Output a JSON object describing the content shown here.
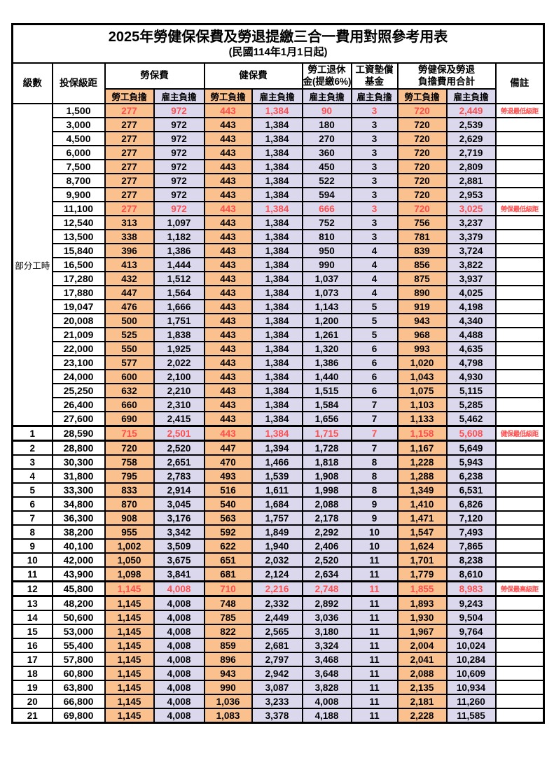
{
  "title": "2025年勞健保保費及勞退提繳三合一費用對照參考用表",
  "subtitle": "(民國114年1月1日起)",
  "columns": {
    "level": "級數",
    "bracket": "投保級距",
    "labor_fee": "勞保費",
    "health_fee": "健保費",
    "pension_line1": "勞工退休",
    "pension_line2": "金(提繳6%)",
    "wage_fund_line1": "工資墊償",
    "wage_fund_line2": "基金",
    "total_line1": "勞健保及勞退",
    "total_line2": "負擔費用合計",
    "remark": "備註",
    "employee_share": "勞工負擔",
    "employer_share": "雇主負擔"
  },
  "part_time_label": "部分工時",
  "part_time_rowspan": 23,
  "colors": {
    "employee_bg": "#FAC08E",
    "employer_bg": "#DBD8EE",
    "highlight_text": "#FF4D4D",
    "border": "#000000"
  },
  "rows": [
    {
      "level": "",
      "bracket": "1,500",
      "labor_emp": "277",
      "labor_er": "972",
      "health_emp": "443",
      "health_er": "1,384",
      "pension_er": "90",
      "fund_er": "3",
      "total_emp": "720",
      "total_er": "2,449",
      "remark": "勞退最低級距",
      "highlight": true,
      "emphasis": false
    },
    {
      "level": "",
      "bracket": "3,000",
      "labor_emp": "277",
      "labor_er": "972",
      "health_emp": "443",
      "health_er": "1,384",
      "pension_er": "180",
      "fund_er": "3",
      "total_emp": "720",
      "total_er": "2,539",
      "remark": "",
      "highlight": false,
      "emphasis": false
    },
    {
      "level": "",
      "bracket": "4,500",
      "labor_emp": "277",
      "labor_er": "972",
      "health_emp": "443",
      "health_er": "1,384",
      "pension_er": "270",
      "fund_er": "3",
      "total_emp": "720",
      "total_er": "2,629",
      "remark": "",
      "highlight": false,
      "emphasis": false
    },
    {
      "level": "",
      "bracket": "6,000",
      "labor_emp": "277",
      "labor_er": "972",
      "health_emp": "443",
      "health_er": "1,384",
      "pension_er": "360",
      "fund_er": "3",
      "total_emp": "720",
      "total_er": "2,719",
      "remark": "",
      "highlight": false,
      "emphasis": false
    },
    {
      "level": "",
      "bracket": "7,500",
      "labor_emp": "277",
      "labor_er": "972",
      "health_emp": "443",
      "health_er": "1,384",
      "pension_er": "450",
      "fund_er": "3",
      "total_emp": "720",
      "total_er": "2,809",
      "remark": "",
      "highlight": false,
      "emphasis": false
    },
    {
      "level": "",
      "bracket": "8,700",
      "labor_emp": "277",
      "labor_er": "972",
      "health_emp": "443",
      "health_er": "1,384",
      "pension_er": "522",
      "fund_er": "3",
      "total_emp": "720",
      "total_er": "2,881",
      "remark": "",
      "highlight": false,
      "emphasis": false
    },
    {
      "level": "",
      "bracket": "9,900",
      "labor_emp": "277",
      "labor_er": "972",
      "health_emp": "443",
      "health_er": "1,384",
      "pension_er": "594",
      "fund_er": "3",
      "total_emp": "720",
      "total_er": "2,953",
      "remark": "",
      "highlight": false,
      "emphasis": false
    },
    {
      "level": "",
      "bracket": "11,100",
      "labor_emp": "277",
      "labor_er": "972",
      "health_emp": "443",
      "health_er": "1,384",
      "pension_er": "666",
      "fund_er": "3",
      "total_emp": "720",
      "total_er": "3,025",
      "remark": "勞保最低級距",
      "highlight": true,
      "emphasis": false
    },
    {
      "level": "",
      "bracket": "12,540",
      "labor_emp": "313",
      "labor_er": "1,097",
      "health_emp": "443",
      "health_er": "1,384",
      "pension_er": "752",
      "fund_er": "3",
      "total_emp": "756",
      "total_er": "3,237",
      "remark": "",
      "highlight": false,
      "emphasis": false
    },
    {
      "level": "",
      "bracket": "13,500",
      "labor_emp": "338",
      "labor_er": "1,182",
      "health_emp": "443",
      "health_er": "1,384",
      "pension_er": "810",
      "fund_er": "3",
      "total_emp": "781",
      "total_er": "3,379",
      "remark": "",
      "highlight": false,
      "emphasis": false
    },
    {
      "level": "",
      "bracket": "15,840",
      "labor_emp": "396",
      "labor_er": "1,386",
      "health_emp": "443",
      "health_er": "1,384",
      "pension_er": "950",
      "fund_er": "4",
      "total_emp": "839",
      "total_er": "3,724",
      "remark": "",
      "highlight": false,
      "emphasis": false
    },
    {
      "level": "",
      "bracket": "16,500",
      "labor_emp": "413",
      "labor_er": "1,444",
      "health_emp": "443",
      "health_er": "1,384",
      "pension_er": "990",
      "fund_er": "4",
      "total_emp": "856",
      "total_er": "3,822",
      "remark": "",
      "highlight": false,
      "emphasis": false
    },
    {
      "level": "",
      "bracket": "17,280",
      "labor_emp": "432",
      "labor_er": "1,512",
      "health_emp": "443",
      "health_er": "1,384",
      "pension_er": "1,037",
      "fund_er": "4",
      "total_emp": "875",
      "total_er": "3,937",
      "remark": "",
      "highlight": false,
      "emphasis": false
    },
    {
      "level": "",
      "bracket": "17,880",
      "labor_emp": "447",
      "labor_er": "1,564",
      "health_emp": "443",
      "health_er": "1,384",
      "pension_er": "1,073",
      "fund_er": "4",
      "total_emp": "890",
      "total_er": "4,025",
      "remark": "",
      "highlight": false,
      "emphasis": false
    },
    {
      "level": "",
      "bracket": "19,047",
      "labor_emp": "476",
      "labor_er": "1,666",
      "health_emp": "443",
      "health_er": "1,384",
      "pension_er": "1,143",
      "fund_er": "5",
      "total_emp": "919",
      "total_er": "4,198",
      "remark": "",
      "highlight": false,
      "emphasis": false
    },
    {
      "level": "",
      "bracket": "20,008",
      "labor_emp": "500",
      "labor_er": "1,751",
      "health_emp": "443",
      "health_er": "1,384",
      "pension_er": "1,200",
      "fund_er": "5",
      "total_emp": "943",
      "total_er": "4,340",
      "remark": "",
      "highlight": false,
      "emphasis": false
    },
    {
      "level": "",
      "bracket": "21,009",
      "labor_emp": "525",
      "labor_er": "1,838",
      "health_emp": "443",
      "health_er": "1,384",
      "pension_er": "1,261",
      "fund_er": "5",
      "total_emp": "968",
      "total_er": "4,488",
      "remark": "",
      "highlight": false,
      "emphasis": false
    },
    {
      "level": "",
      "bracket": "22,000",
      "labor_emp": "550",
      "labor_er": "1,925",
      "health_emp": "443",
      "health_er": "1,384",
      "pension_er": "1,320",
      "fund_er": "6",
      "total_emp": "993",
      "total_er": "4,635",
      "remark": "",
      "highlight": false,
      "emphasis": false
    },
    {
      "level": "",
      "bracket": "23,100",
      "labor_emp": "577",
      "labor_er": "2,022",
      "health_emp": "443",
      "health_er": "1,384",
      "pension_er": "1,386",
      "fund_er": "6",
      "total_emp": "1,020",
      "total_er": "4,798",
      "remark": "",
      "highlight": false,
      "emphasis": false
    },
    {
      "level": "",
      "bracket": "24,000",
      "labor_emp": "600",
      "labor_er": "2,100",
      "health_emp": "443",
      "health_er": "1,384",
      "pension_er": "1,440",
      "fund_er": "6",
      "total_emp": "1,043",
      "total_er": "4,930",
      "remark": "",
      "highlight": false,
      "emphasis": false
    },
    {
      "level": "",
      "bracket": "25,250",
      "labor_emp": "632",
      "labor_er": "2,210",
      "health_emp": "443",
      "health_er": "1,384",
      "pension_er": "1,515",
      "fund_er": "6",
      "total_emp": "1,075",
      "total_er": "5,115",
      "remark": "",
      "highlight": false,
      "emphasis": false
    },
    {
      "level": "",
      "bracket": "26,400",
      "labor_emp": "660",
      "labor_er": "2,310",
      "health_emp": "443",
      "health_er": "1,384",
      "pension_er": "1,584",
      "fund_er": "7",
      "total_emp": "1,103",
      "total_er": "5,285",
      "remark": "",
      "highlight": false,
      "emphasis": false
    },
    {
      "level": "",
      "bracket": "27,600",
      "labor_emp": "690",
      "labor_er": "2,415",
      "health_emp": "443",
      "health_er": "1,384",
      "pension_er": "1,656",
      "fund_er": "7",
      "total_emp": "1,133",
      "total_er": "5,462",
      "remark": "",
      "highlight": false,
      "emphasis": false
    },
    {
      "level": "1",
      "bracket": "28,590",
      "labor_emp": "715",
      "labor_er": "2,501",
      "health_emp": "443",
      "health_er": "1,384",
      "pension_er": "1,715",
      "fund_er": "7",
      "total_emp": "1,158",
      "total_er": "5,608",
      "remark": "健保最低級距",
      "highlight": true,
      "emphasis": true
    },
    {
      "level": "2",
      "bracket": "28,800",
      "labor_emp": "720",
      "labor_er": "2,520",
      "health_emp": "447",
      "health_er": "1,394",
      "pension_er": "1,728",
      "fund_er": "7",
      "total_emp": "1,167",
      "total_er": "5,649",
      "remark": "",
      "highlight": false,
      "emphasis": false
    },
    {
      "level": "3",
      "bracket": "30,300",
      "labor_emp": "758",
      "labor_er": "2,651",
      "health_emp": "470",
      "health_er": "1,466",
      "pension_er": "1,818",
      "fund_er": "8",
      "total_emp": "1,228",
      "total_er": "5,943",
      "remark": "",
      "highlight": false,
      "emphasis": false
    },
    {
      "level": "4",
      "bracket": "31,800",
      "labor_emp": "795",
      "labor_er": "2,783",
      "health_emp": "493",
      "health_er": "1,539",
      "pension_er": "1,908",
      "fund_er": "8",
      "total_emp": "1,288",
      "total_er": "6,238",
      "remark": "",
      "highlight": false,
      "emphasis": false
    },
    {
      "level": "5",
      "bracket": "33,300",
      "labor_emp": "833",
      "labor_er": "2,914",
      "health_emp": "516",
      "health_er": "1,611",
      "pension_er": "1,998",
      "fund_er": "8",
      "total_emp": "1,349",
      "total_er": "6,531",
      "remark": "",
      "highlight": false,
      "emphasis": false
    },
    {
      "level": "6",
      "bracket": "34,800",
      "labor_emp": "870",
      "labor_er": "3,045",
      "health_emp": "540",
      "health_er": "1,684",
      "pension_er": "2,088",
      "fund_er": "9",
      "total_emp": "1,410",
      "total_er": "6,826",
      "remark": "",
      "highlight": false,
      "emphasis": false
    },
    {
      "level": "7",
      "bracket": "36,300",
      "labor_emp": "908",
      "labor_er": "3,176",
      "health_emp": "563",
      "health_er": "1,757",
      "pension_er": "2,178",
      "fund_er": "9",
      "total_emp": "1,471",
      "total_er": "7,120",
      "remark": "",
      "highlight": false,
      "emphasis": false
    },
    {
      "level": "8",
      "bracket": "38,200",
      "labor_emp": "955",
      "labor_er": "3,342",
      "health_emp": "592",
      "health_er": "1,849",
      "pension_er": "2,292",
      "fund_er": "10",
      "total_emp": "1,547",
      "total_er": "7,493",
      "remark": "",
      "highlight": false,
      "emphasis": false
    },
    {
      "level": "9",
      "bracket": "40,100",
      "labor_emp": "1,002",
      "labor_er": "3,509",
      "health_emp": "622",
      "health_er": "1,940",
      "pension_er": "2,406",
      "fund_er": "10",
      "total_emp": "1,624",
      "total_er": "7,865",
      "remark": "",
      "highlight": false,
      "emphasis": false
    },
    {
      "level": "10",
      "bracket": "42,000",
      "labor_emp": "1,050",
      "labor_er": "3,675",
      "health_emp": "651",
      "health_er": "2,032",
      "pension_er": "2,520",
      "fund_er": "11",
      "total_emp": "1,701",
      "total_er": "8,238",
      "remark": "",
      "highlight": false,
      "emphasis": false
    },
    {
      "level": "11",
      "bracket": "43,900",
      "labor_emp": "1,098",
      "labor_er": "3,841",
      "health_emp": "681",
      "health_er": "2,124",
      "pension_er": "2,634",
      "fund_er": "11",
      "total_emp": "1,779",
      "total_er": "8,610",
      "remark": "",
      "highlight": false,
      "emphasis": false
    },
    {
      "level": "12",
      "bracket": "45,800",
      "labor_emp": "1,145",
      "labor_er": "4,008",
      "health_emp": "710",
      "health_er": "2,216",
      "pension_er": "2,748",
      "fund_er": "11",
      "total_emp": "1,855",
      "total_er": "8,983",
      "remark": "勞保最高級距",
      "highlight": true,
      "emphasis": true
    },
    {
      "level": "13",
      "bracket": "48,200",
      "labor_emp": "1,145",
      "labor_er": "4,008",
      "health_emp": "748",
      "health_er": "2,332",
      "pension_er": "2,892",
      "fund_er": "11",
      "total_emp": "1,893",
      "total_er": "9,243",
      "remark": "",
      "highlight": false,
      "emphasis": false
    },
    {
      "level": "14",
      "bracket": "50,600",
      "labor_emp": "1,145",
      "labor_er": "4,008",
      "health_emp": "785",
      "health_er": "2,449",
      "pension_er": "3,036",
      "fund_er": "11",
      "total_emp": "1,930",
      "total_er": "9,504",
      "remark": "",
      "highlight": false,
      "emphasis": false
    },
    {
      "level": "15",
      "bracket": "53,000",
      "labor_emp": "1,145",
      "labor_er": "4,008",
      "health_emp": "822",
      "health_er": "2,565",
      "pension_er": "3,180",
      "fund_er": "11",
      "total_emp": "1,967",
      "total_er": "9,764",
      "remark": "",
      "highlight": false,
      "emphasis": false
    },
    {
      "level": "16",
      "bracket": "55,400",
      "labor_emp": "1,145",
      "labor_er": "4,008",
      "health_emp": "859",
      "health_er": "2,681",
      "pension_er": "3,324",
      "fund_er": "11",
      "total_emp": "2,004",
      "total_er": "10,024",
      "remark": "",
      "highlight": false,
      "emphasis": false
    },
    {
      "level": "17",
      "bracket": "57,800",
      "labor_emp": "1,145",
      "labor_er": "4,008",
      "health_emp": "896",
      "health_er": "2,797",
      "pension_er": "3,468",
      "fund_er": "11",
      "total_emp": "2,041",
      "total_er": "10,284",
      "remark": "",
      "highlight": false,
      "emphasis": false
    },
    {
      "level": "18",
      "bracket": "60,800",
      "labor_emp": "1,145",
      "labor_er": "4,008",
      "health_emp": "943",
      "health_er": "2,942",
      "pension_er": "3,648",
      "fund_er": "11",
      "total_emp": "2,088",
      "total_er": "10,609",
      "remark": "",
      "highlight": false,
      "emphasis": false
    },
    {
      "level": "19",
      "bracket": "63,800",
      "labor_emp": "1,145",
      "labor_er": "4,008",
      "health_emp": "990",
      "health_er": "3,087",
      "pension_er": "3,828",
      "fund_er": "11",
      "total_emp": "2,135",
      "total_er": "10,934",
      "remark": "",
      "highlight": false,
      "emphasis": false
    },
    {
      "level": "20",
      "bracket": "66,800",
      "labor_emp": "1,145",
      "labor_er": "4,008",
      "health_emp": "1,036",
      "health_er": "3,233",
      "pension_er": "4,008",
      "fund_er": "11",
      "total_emp": "2,181",
      "total_er": "11,260",
      "remark": "",
      "highlight": false,
      "emphasis": false
    },
    {
      "level": "21",
      "bracket": "69,800",
      "labor_emp": "1,145",
      "labor_er": "4,008",
      "health_emp": "1,083",
      "health_er": "3,378",
      "pension_er": "4,188",
      "fund_er": "11",
      "total_emp": "2,228",
      "total_er": "11,585",
      "remark": "",
      "highlight": false,
      "emphasis": false
    }
  ]
}
